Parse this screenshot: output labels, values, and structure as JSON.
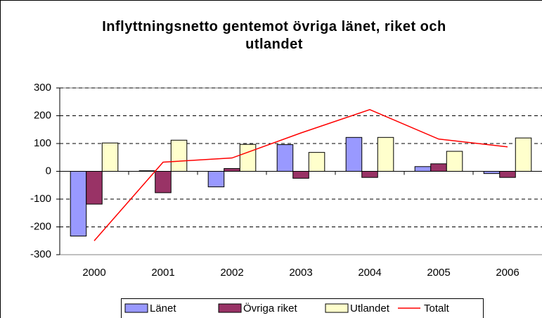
{
  "chart_data": {
    "type": "bar",
    "title": "Inflyttningsnetto gentemot övriga länet, riket och utlandet",
    "categories": [
      "2000",
      "2001",
      "2002",
      "2003",
      "2004",
      "2005",
      "2006"
    ],
    "series": [
      {
        "name": "Länet",
        "color": "#9999ff",
        "values": [
          -233,
          2,
          -56,
          96,
          122,
          17,
          -8
        ]
      },
      {
        "name": "Övriga riket",
        "color": "#993366",
        "values": [
          -118,
          -77,
          10,
          -25,
          -22,
          27,
          -22
        ]
      },
      {
        "name": "Utlandet",
        "color": "#ffffcc",
        "values": [
          102,
          112,
          97,
          68,
          122,
          72,
          120
        ]
      },
      {
        "name": "Totalt",
        "color": "#ff0000",
        "type": "line",
        "values": [
          -250,
          33,
          48,
          138,
          222,
          116,
          88
        ]
      }
    ],
    "ylim": [
      -300,
      300
    ],
    "yticks": [
      -300,
      -200,
      -100,
      0,
      100,
      200,
      300
    ],
    "grid": true,
    "legend": "bottom"
  }
}
